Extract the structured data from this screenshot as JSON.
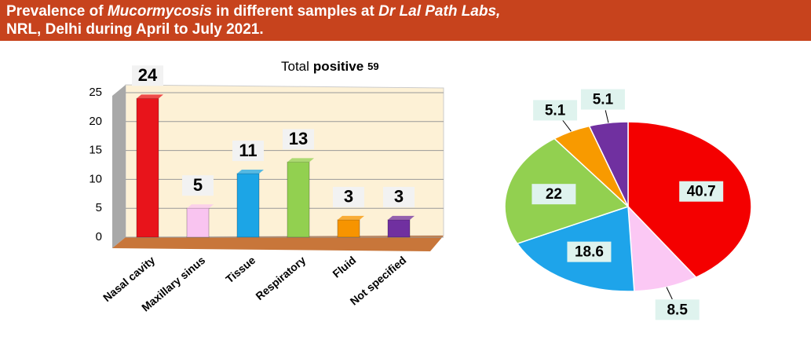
{
  "title": [
    "Prevalence of ",
    "Mucormycosis",
    " in different samples at ",
    "Dr Lal Path Labs,",
    "NRL, Delhi during April to July 2021."
  ],
  "chart_data": [
    {
      "type": "bar",
      "annotation": [
        "Total",
        "positive"
      ],
      "total": 59,
      "categories": [
        "Nasal cavity",
        "Maxillary sinus",
        "Tissue",
        "Respiratory",
        "Fluid",
        "Not specified"
      ],
      "values": [
        24,
        5,
        11,
        13,
        3,
        3
      ],
      "colors": [
        "#e8141b",
        "#f9c4f0",
        "#1ca5e6",
        "#92d050",
        "#f79400",
        "#7030a0"
      ],
      "ylim": [
        0,
        25
      ],
      "yticks": [
        0,
        5,
        10,
        15,
        20,
        25
      ],
      "grid": true
    },
    {
      "type": "pie",
      "values": [
        40.7,
        8.5,
        18.6,
        22,
        5.1,
        5.1
      ],
      "colors": [
        "#f40000",
        "#fbc8f4",
        "#1ea4ea",
        "#92d050",
        "#f89a00",
        "#7030a0"
      ]
    }
  ]
}
